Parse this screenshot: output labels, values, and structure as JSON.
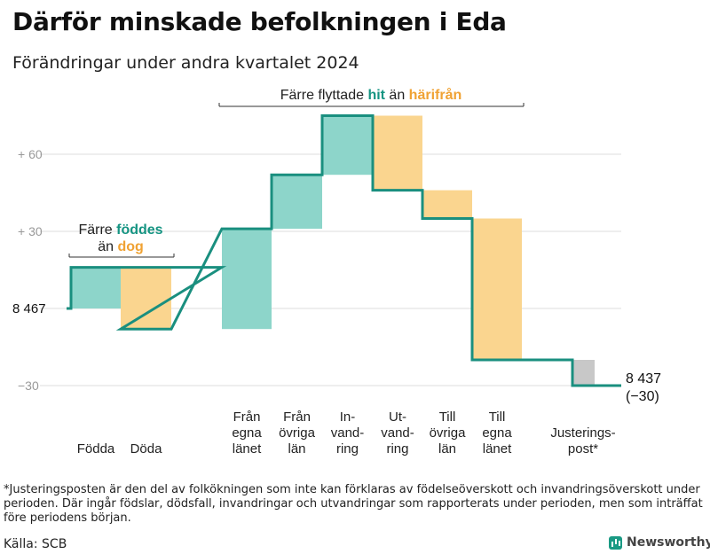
{
  "title": "Därför minskade befolkningen i Eda",
  "subtitle": "Förändringar under andra kvartalet 2024",
  "footnote": "*Justeringsposten är den del av folkökningen som inte kan förklaras av födelseöverskott och invandringsöverskott under perioden. Där ingår födslar, dödsfall, invandringar och utvandringar som rapporterats under perioden, men som inträffat före periodens början.",
  "source": "Källa: SCB",
  "brand": "Newsworthy",
  "colors": {
    "increase": "#8dd5ca",
    "decrease": "#fad58f",
    "adjustment": "#c8c8c8",
    "line": "#1a8f7f",
    "teal_text": "#159482",
    "orange_text": "#f0a233",
    "grid": "#dddddd"
  },
  "chart_data": {
    "type": "waterfall",
    "start_value": 8467,
    "start_label": "8 467",
    "end_label": "8 437",
    "end_change_label": "(−30)",
    "y_ticks": [
      {
        "value": 60,
        "label": "+  60"
      },
      {
        "value": 30,
        "label": "+  30"
      },
      {
        "value": 0,
        "label": ""
      },
      {
        "value": -30,
        "label": "−30"
      }
    ],
    "ylim": [
      -31,
      80
    ],
    "steps": [
      {
        "label": "Födda",
        "value": 16,
        "kind": "increase"
      },
      {
        "label": "Döda",
        "value": -24,
        "kind": "decrease"
      },
      {
        "label": "Från egna länet",
        "value": 39,
        "kind": "increase"
      },
      {
        "label": "Från övriga län",
        "value": 21,
        "kind": "increase"
      },
      {
        "label": "In-vandring",
        "value": 23,
        "kind": "increase"
      },
      {
        "label": "Ut-vandring",
        "value": -29,
        "kind": "decrease"
      },
      {
        "label": "Till övriga län",
        "value": -11,
        "kind": "decrease"
      },
      {
        "label": "Till egna länet",
        "value": -55,
        "kind": "decrease"
      },
      {
        "label": "Justerings-post*",
        "value": -10,
        "kind": "adjustment"
      }
    ],
    "x_labels": [
      [
        "Födda"
      ],
      [
        "Döda"
      ],
      [
        "Från",
        "egna",
        "länet"
      ],
      [
        "Från",
        "övriga",
        "län"
      ],
      [
        "In-",
        "vand-",
        "ring"
      ],
      [
        "Ut-",
        "vand-",
        "ring"
      ],
      [
        "Till",
        "övriga",
        "län"
      ],
      [
        "Till",
        "egna",
        "länet"
      ],
      [
        "Justerings-",
        "post*"
      ]
    ],
    "annotations": {
      "births": {
        "line1": "Färre",
        "hl1": "föddes",
        "line2": "än",
        "hl2": "dog"
      },
      "migration": {
        "prefix": "Färre flyttade",
        "hl1": "hit",
        "middle": "än",
        "hl2": "härifrån"
      }
    }
  }
}
